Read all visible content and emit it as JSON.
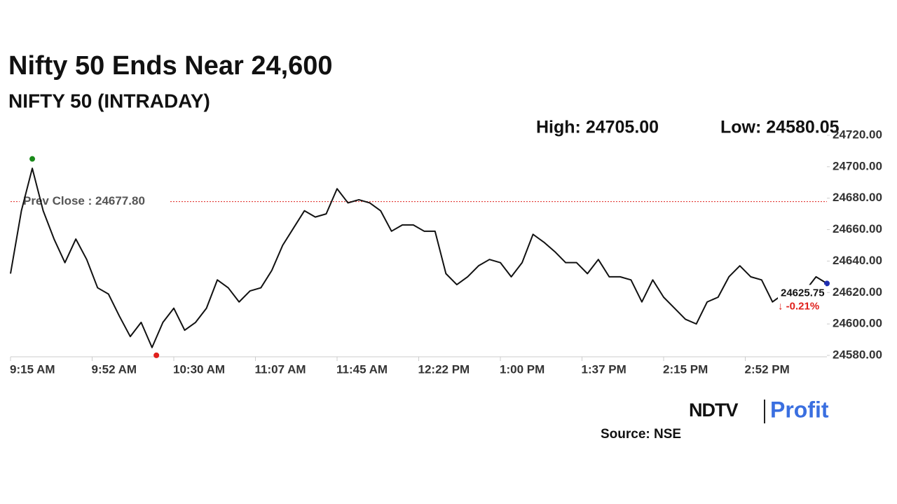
{
  "chart_data": {
    "type": "line",
    "title": "Nifty 50 Ends Near 24,600",
    "subtitle": "NIFTY 50 (INTRADAY)",
    "source": "Source: NSE",
    "logo": {
      "left": "NDTV",
      "right": "Profit"
    },
    "x": [
      555,
      560,
      565,
      570,
      575,
      580,
      585,
      590,
      595,
      600,
      605,
      610,
      615,
      620,
      625,
      630,
      635,
      640,
      645,
      650,
      655,
      660,
      665,
      670,
      675,
      680,
      685,
      690,
      695,
      700,
      705,
      710,
      715,
      720,
      725,
      730,
      735,
      740,
      745,
      750,
      755,
      760,
      765,
      770,
      775,
      780,
      785,
      790,
      795,
      800,
      805,
      810,
      815,
      820,
      825,
      830,
      835,
      840,
      845,
      850,
      855,
      860,
      865,
      870,
      875,
      880,
      885,
      890,
      895,
      900,
      905,
      910,
      915,
      920,
      925,
      930
    ],
    "series": [
      {
        "name": "NIFTY 50",
        "color": "#111111",
        "values": [
          24632,
          24672,
          24699,
          24672,
          24654,
          24639,
          24654,
          24641,
          24623,
          24619,
          24605,
          24592,
          24601,
          24585,
          24601,
          24610,
          24596,
          24601,
          24610,
          24628,
          24623,
          24614,
          24621,
          24623,
          24634,
          24650,
          24661,
          24672,
          24668,
          24670,
          24686,
          24677,
          24679,
          24677,
          24672,
          24659,
          24663,
          24663,
          24659,
          24659,
          24632,
          24625,
          24630,
          24637,
          24641,
          24639,
          24630,
          24639,
          24657,
          24652,
          24646,
          24639,
          24639,
          24632,
          24641,
          24630,
          24630,
          24628,
          24614,
          24628,
          24617,
          24610,
          24603,
          24600,
          24614,
          24617,
          24630,
          24637,
          24630,
          24628,
          24614,
          24619,
          24614,
          24621,
          24630,
          24625.75
        ]
      }
    ],
    "xlim": [
      555,
      930
    ],
    "xticks": [
      {
        "value": 555,
        "label": "9:15 AM"
      },
      {
        "value": 592.5,
        "label": "9:52 AM"
      },
      {
        "value": 630,
        "label": "10:30 AM"
      },
      {
        "value": 667.5,
        "label": "11:07 AM"
      },
      {
        "value": 705,
        "label": "11:45 AM"
      },
      {
        "value": 742.5,
        "label": "12:22 PM"
      },
      {
        "value": 780,
        "label": "1:00 PM"
      },
      {
        "value": 817.5,
        "label": "1:37 PM"
      },
      {
        "value": 855,
        "label": "2:15 PM"
      },
      {
        "value": 892.5,
        "label": "2:52 PM"
      }
    ],
    "ylim": [
      24580,
      24720
    ],
    "yticks": [
      {
        "value": 24580,
        "label": "24580.00"
      },
      {
        "value": 24600,
        "label": "24600.00"
      },
      {
        "value": 24620,
        "label": "24620.00"
      },
      {
        "value": 24640,
        "label": "24640.00"
      },
      {
        "value": 24660,
        "label": "24660.00"
      },
      {
        "value": 24680,
        "label": "24680.00"
      },
      {
        "value": 24700,
        "label": "24700.00"
      },
      {
        "value": 24720,
        "label": "24720.00"
      }
    ],
    "high": {
      "x": 565,
      "value": 24705,
      "label": "High: 24705.00",
      "color": "#1a8a1a"
    },
    "low": {
      "x": 622,
      "value": 24580.05,
      "label": "Low: 24580.05",
      "color": "#e0201c"
    },
    "prev_close": {
      "value": 24677.8,
      "label": "Prev Close : 24677.80",
      "color": "#e0201c"
    },
    "last": {
      "value": 24625.75,
      "label": "24625.75",
      "change_label": "↓ -0.21%",
      "color": "#1f2fb0",
      "change_color": "#e0201c"
    }
  }
}
